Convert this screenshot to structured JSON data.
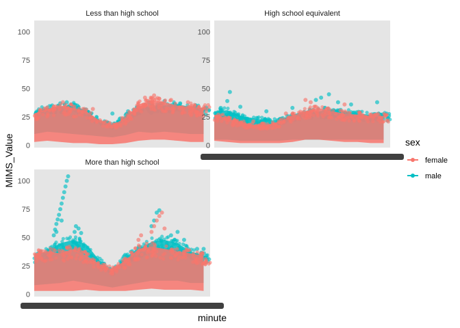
{
  "chart_data": {
    "type": "scatter",
    "facet_by": "education",
    "facets": [
      {
        "title": "Less than high school",
        "series": [
          {
            "name": "female",
            "band": [
              [
                0,
                3,
                28
              ],
              [
                10,
                4,
                32
              ],
              [
                20,
                3,
                35
              ],
              [
                30,
                2,
                33
              ],
              [
                40,
                2,
                30
              ],
              [
                50,
                1,
                22
              ],
              [
                60,
                1,
                18
              ],
              [
                70,
                2,
                24
              ],
              [
                80,
                4,
                36
              ],
              [
                90,
                5,
                40
              ],
              [
                100,
                5,
                38
              ],
              [
                110,
                4,
                35
              ],
              [
                120,
                3,
                34
              ],
              [
                130,
                3,
                33
              ]
            ],
            "outliers": [
              [
                22,
                38
              ],
              [
                45,
                32
              ],
              [
                85,
                42
              ],
              [
                92,
                44
              ],
              [
                96,
                41
              ],
              [
                105,
                40
              ],
              [
                118,
                38
              ]
            ]
          },
          {
            "name": "male",
            "band": [
              [
                0,
                10,
                30
              ],
              [
                10,
                12,
                33
              ],
              [
                20,
                11,
                34
              ],
              [
                30,
                10,
                36
              ],
              [
                40,
                9,
                30
              ],
              [
                50,
                8,
                22
              ],
              [
                60,
                7,
                18
              ],
              [
                70,
                9,
                26
              ],
              [
                80,
                12,
                33
              ],
              [
                90,
                11,
                34
              ],
              [
                100,
                12,
                35
              ],
              [
                110,
                11,
                36
              ],
              [
                120,
                10,
                34
              ],
              [
                130,
                10,
                33
              ]
            ],
            "outliers": [
              [
                20,
                37
              ],
              [
                25,
                38
              ],
              [
                30,
                36
              ],
              [
                33,
                35
              ],
              [
                60,
                28
              ],
              [
                72,
                30
              ],
              [
                88,
                38
              ],
              [
                100,
                39
              ],
              [
                112,
                37
              ]
            ]
          }
        ]
      },
      {
        "title": "High school equivalent",
        "series": [
          {
            "name": "female",
            "band": [
              [
                0,
                4,
                27
              ],
              [
                10,
                3,
                24
              ],
              [
                20,
                2,
                20
              ],
              [
                30,
                2,
                18
              ],
              [
                40,
                2,
                18
              ],
              [
                50,
                2,
                21
              ],
              [
                60,
                3,
                26
              ],
              [
                70,
                5,
                30
              ],
              [
                80,
                5,
                33
              ],
              [
                90,
                4,
                30
              ],
              [
                100,
                3,
                28
              ],
              [
                110,
                3,
                27
              ],
              [
                120,
                2,
                26
              ],
              [
                130,
                2,
                26
              ]
            ],
            "outliers": [
              [
                30,
                21
              ],
              [
                55,
                28
              ],
              [
                70,
                40
              ],
              [
                74,
                38
              ],
              [
                78,
                34
              ],
              [
                100,
                36
              ]
            ]
          },
          {
            "name": "male",
            "band": [
              [
                0,
                5,
                30
              ],
              [
                10,
                5,
                31
              ],
              [
                20,
                4,
                26
              ],
              [
                30,
                4,
                24
              ],
              [
                40,
                4,
                22
              ],
              [
                50,
                4,
                22
              ],
              [
                60,
                5,
                27
              ],
              [
                70,
                5,
                30
              ],
              [
                80,
                5,
                30
              ],
              [
                90,
                5,
                32
              ],
              [
                100,
                5,
                30
              ],
              [
                110,
                5,
                28
              ],
              [
                120,
                5,
                27
              ],
              [
                130,
                5,
                27
              ]
            ],
            "outliers": [
              [
                5,
                33
              ],
              [
                10,
                39
              ],
              [
                12,
                47
              ],
              [
                20,
                34
              ],
              [
                40,
                30
              ],
              [
                60,
                33
              ],
              [
                78,
                40
              ],
              [
                82,
                42
              ],
              [
                88,
                45
              ],
              [
                95,
                38
              ],
              [
                105,
                36
              ],
              [
                125,
                38
              ]
            ]
          }
        ]
      },
      {
        "title": "More than high school",
        "series": [
          {
            "name": "female",
            "band": [
              [
                0,
                3,
                36
              ],
              [
                10,
                3,
                38
              ],
              [
                20,
                3,
                36
              ],
              [
                30,
                3,
                40
              ],
              [
                40,
                4,
                34
              ],
              [
                50,
                3,
                27
              ],
              [
                60,
                3,
                22
              ],
              [
                70,
                3,
                30
              ],
              [
                80,
                4,
                40
              ],
              [
                90,
                5,
                42
              ],
              [
                100,
                4,
                40
              ],
              [
                110,
                4,
                38
              ],
              [
                120,
                4,
                36
              ],
              [
                130,
                3,
                34
              ]
            ],
            "outliers": [
              [
                60,
                18
              ],
              [
                80,
                48
              ],
              [
                82,
                52
              ],
              [
                90,
                55
              ],
              [
                92,
                60
              ],
              [
                94,
                65
              ],
              [
                96,
                69
              ],
              [
                98,
                72
              ],
              [
                100,
                58
              ]
            ]
          },
          {
            "name": "male",
            "band": [
              [
                0,
                8,
                34
              ],
              [
                10,
                9,
                38
              ],
              [
                20,
                10,
                45
              ],
              [
                30,
                12,
                48
              ],
              [
                40,
                10,
                44
              ],
              [
                50,
                8,
                30
              ],
              [
                60,
                6,
                20
              ],
              [
                70,
                8,
                33
              ],
              [
                80,
                10,
                40
              ],
              [
                90,
                12,
                46
              ],
              [
                100,
                12,
                48
              ],
              [
                110,
                12,
                45
              ],
              [
                120,
                10,
                38
              ],
              [
                130,
                10,
                34
              ]
            ],
            "outliers": [
              [
                15,
                52
              ],
              [
                16,
                57
              ],
              [
                17,
                62
              ],
              [
                18,
                66
              ],
              [
                19,
                70
              ],
              [
                20,
                75
              ],
              [
                21,
                80
              ],
              [
                22,
                85
              ],
              [
                23,
                90
              ],
              [
                24,
                95
              ],
              [
                25,
                100
              ],
              [
                26,
                104
              ],
              [
                17,
                55
              ],
              [
                21,
                65
              ],
              [
                31,
                55
              ],
              [
                32,
                60
              ],
              [
                34,
                58
              ],
              [
                36,
                54
              ],
              [
                90,
                60
              ],
              [
                92,
                65
              ],
              [
                94,
                72
              ],
              [
                96,
                74
              ],
              [
                105,
                52
              ],
              [
                110,
                55
              ],
              [
                115,
                48
              ],
              [
                125,
                40
              ],
              [
                130,
                40
              ]
            ]
          }
        ]
      }
    ],
    "x_range": [
      0,
      135
    ],
    "ylim": [
      -2,
      110
    ],
    "y_ticks": [
      0,
      25,
      50,
      75,
      100
    ],
    "xlabel": "minute",
    "ylabel": "MIMS_Value",
    "grid": false,
    "legend": {
      "title": "sex",
      "position": "right",
      "entries": [
        {
          "label": "female",
          "color": "#F8766D"
        },
        {
          "label": "male",
          "color": "#00BFC4"
        }
      ]
    },
    "panel_background": "#E5E5E5"
  }
}
